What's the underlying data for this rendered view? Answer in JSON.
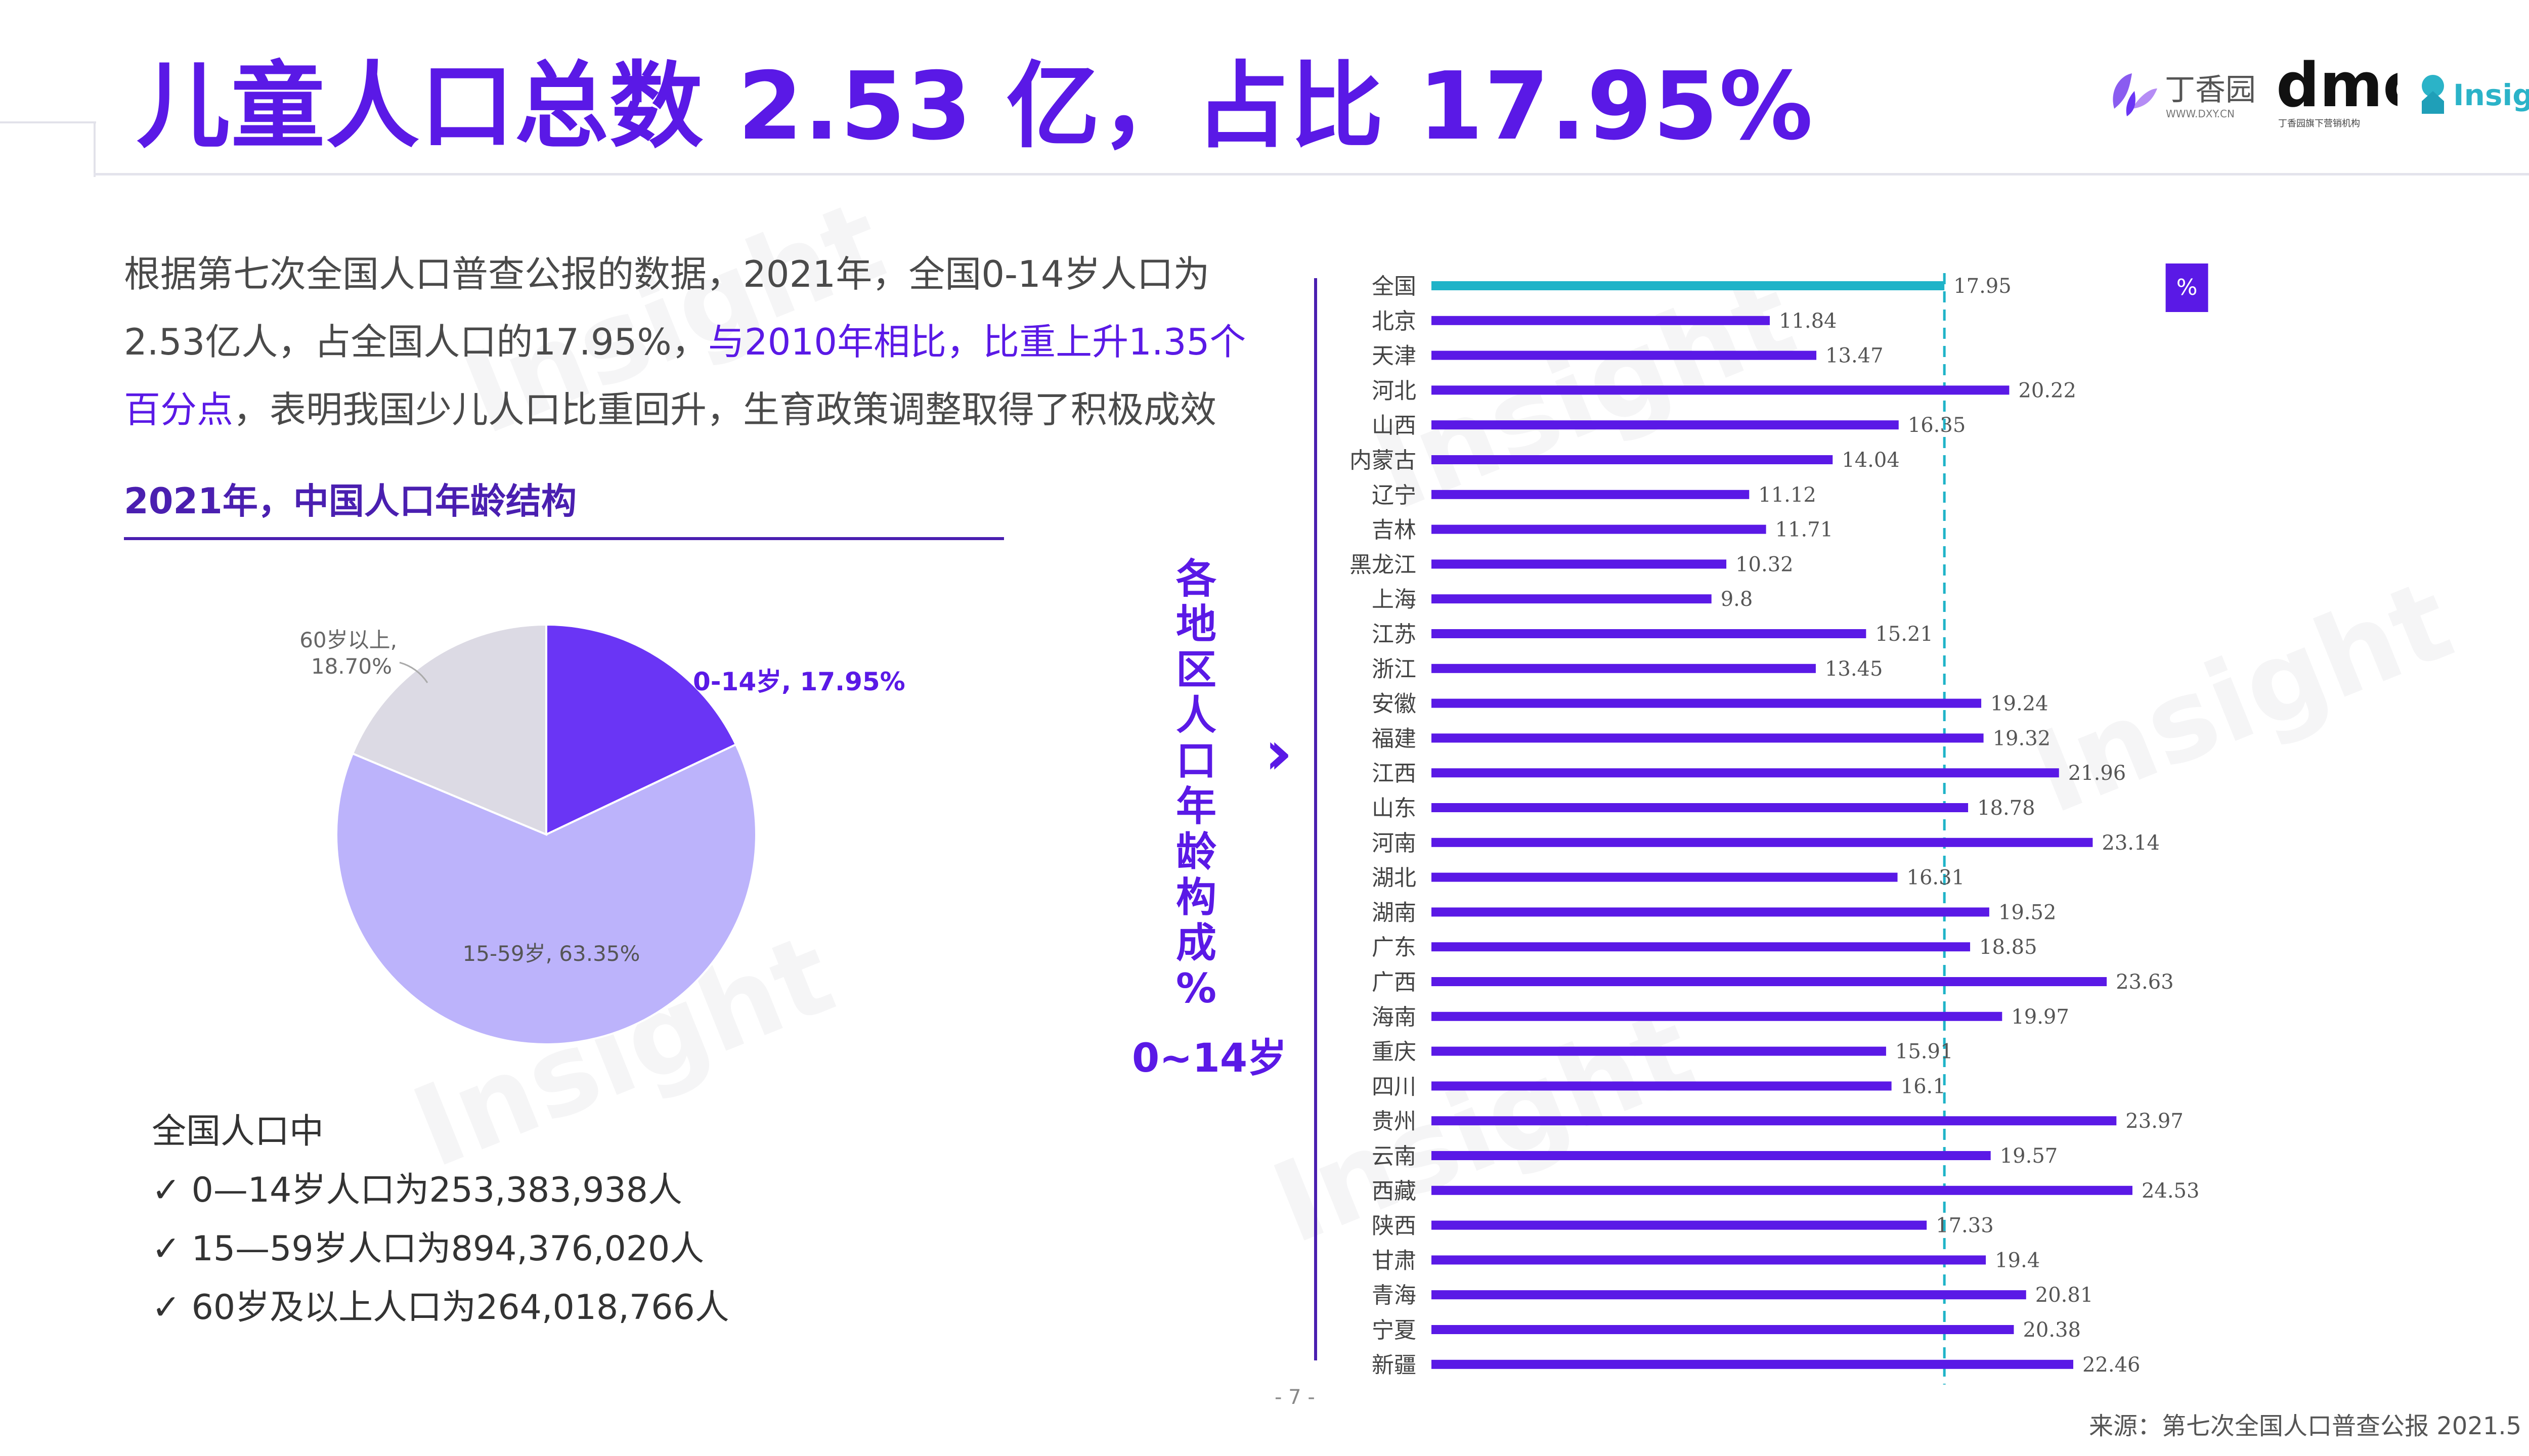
{
  "header": {
    "title": "儿童人口总数 2.53 亿，占比 17.95%",
    "logo_dxy": "丁香园",
    "logo_dxy_sub": "WWW.DXY.CN",
    "logo_dmc": "dmc",
    "logo_dmc_sub": "丁香园旗下营销机构",
    "logo_insight": "Insight"
  },
  "intro": {
    "part1": "根据第七次全国人口普查公报的数据，2021年，全国0-14岁人口为2.53亿人，占全国人口的17.95%，",
    "highlight": "与2010年相比，比重上升1.35个百分点",
    "part2": "，表明我国少儿人口比重回升，生育政策调整取得了积极成效"
  },
  "pie_section": {
    "title": "2021年，中国人口年龄结构"
  },
  "stats": {
    "heading": "全国人口中",
    "items": [
      "✓ 0—14岁人口为253,383,938人",
      "✓ 15—59岁人口为894,376,020人",
      "✓ 60岁及以上人口为264,018,766人"
    ]
  },
  "side_label": {
    "chars": [
      "各",
      "地",
      "区",
      "人",
      "口",
      "年",
      "龄",
      "构",
      "成",
      "%"
    ],
    "sub": "0~14岁"
  },
  "footer": {
    "page": "- 7 -",
    "source": "来源：第七次全国人口普查公报 2021.5"
  },
  "colors": {
    "accent": "#5a19e6",
    "national_bar": "#1fb3c8",
    "pie_young": "#6a35f5",
    "pie_working": "#bcb3fb",
    "pie_old": "#dcdae4"
  },
  "chart_data": [
    {
      "type": "pie",
      "title": "2021年，中国人口年龄结构",
      "slices": [
        {
          "label": "0-14岁, 17.95%",
          "value": 17.95,
          "color": "#6a35f5"
        },
        {
          "label": "15-59岁, 63.35%",
          "value": 63.35,
          "color": "#bcb3fb"
        },
        {
          "label": "60岁以上, 18.70%",
          "value": 18.7,
          "color": "#dcdae4"
        }
      ]
    },
    {
      "type": "bar",
      "orientation": "horizontal",
      "unit_badge": "%",
      "categories": [
        "全国",
        "北京",
        "天津",
        "河北",
        "山西",
        "内蒙古",
        "辽宁",
        "吉林",
        "黑龙江",
        "上海",
        "江苏",
        "浙江",
        "安徽",
        "福建",
        "江西",
        "山东",
        "河南",
        "湖北",
        "湖南",
        "广东",
        "广西",
        "海南",
        "重庆",
        "四川",
        "贵州",
        "云南",
        "西藏",
        "陕西",
        "甘肃",
        "青海",
        "宁夏",
        "新疆"
      ],
      "values": [
        17.95,
        11.84,
        13.47,
        20.22,
        16.35,
        14.04,
        11.12,
        11.71,
        10.32,
        9.8,
        15.21,
        13.45,
        19.24,
        19.32,
        21.96,
        18.78,
        23.14,
        16.31,
        19.52,
        18.85,
        23.63,
        19.97,
        15.91,
        16.1,
        23.97,
        19.57,
        24.53,
        17.33,
        19.4,
        20.81,
        20.38,
        22.46
      ],
      "value_labels": [
        "17.95",
        "11.84",
        "13.47",
        "20.22",
        "16.35",
        "14.04",
        "11.12",
        "11.71",
        "10.32",
        "9.8",
        "15.21",
        "13.45",
        "19.24",
        "19.32",
        "21.96",
        "18.78",
        "23.14",
        "16.31",
        "19.52",
        "18.85",
        "23.63",
        "19.97",
        "15.91",
        "16.1",
        "23.97",
        "19.57",
        "24.53",
        "17.33",
        "19.4",
        "20.81",
        "20.38",
        "22.46"
      ],
      "highlight_category": "全国",
      "reference_line": 17.95,
      "bar_color": "#5a19e6",
      "highlight_color": "#1fb3c8",
      "xlim": [
        0,
        27
      ]
    }
  ]
}
